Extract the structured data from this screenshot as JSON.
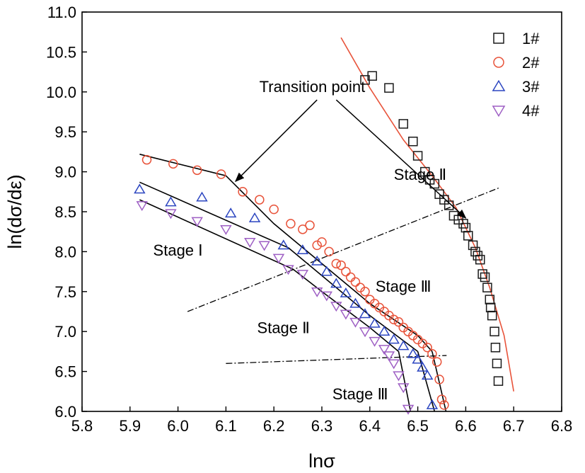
{
  "chart_data": {
    "type": "scatter",
    "title": "",
    "xlabel": "lnσ",
    "ylabel": "ln(dσ/dε)",
    "xlim": [
      5.8,
      6.8
    ],
    "ylim": [
      6.0,
      11.0
    ],
    "xticks": [
      "5.8",
      "5.9",
      "6.0",
      "6.1",
      "6.2",
      "6.3",
      "6.4",
      "6.5",
      "6.6",
      "6.7",
      "6.8"
    ],
    "yticks": [
      "6.0",
      "6.5",
      "7.0",
      "7.5",
      "8.0",
      "8.5",
      "9.0",
      "9.5",
      "10.0",
      "10.5",
      "11.0"
    ],
    "grid": false,
    "legend_position": "top-right",
    "series": [
      {
        "name": "1#",
        "marker": "square",
        "color": "#1a1a1a",
        "x": [
          6.39,
          6.405,
          6.44,
          6.47,
          6.49,
          6.5,
          6.515,
          6.525,
          6.535,
          6.545,
          6.555,
          6.565,
          6.575,
          6.585,
          6.595,
          6.6,
          6.605,
          6.615,
          6.62,
          6.625,
          6.63,
          6.635,
          6.64,
          6.645,
          6.65,
          6.652,
          6.655,
          6.66,
          6.662,
          6.665,
          6.668
        ],
        "y": [
          10.15,
          10.2,
          10.05,
          9.6,
          9.38,
          9.2,
          9.0,
          8.9,
          8.85,
          8.72,
          8.65,
          8.58,
          8.45,
          8.4,
          8.35,
          8.3,
          8.2,
          8.08,
          8.0,
          7.95,
          7.9,
          7.72,
          7.68,
          7.55,
          7.4,
          7.3,
          7.2,
          7.0,
          6.8,
          6.6,
          6.38
        ]
      },
      {
        "name": "2#",
        "marker": "circle",
        "color": "#e8533a",
        "x": [
          5.935,
          5.99,
          6.04,
          6.09,
          6.135,
          6.17,
          6.2,
          6.235,
          6.26,
          6.275,
          6.29,
          6.3,
          6.315,
          6.33,
          6.34,
          6.35,
          6.36,
          6.37,
          6.38,
          6.39,
          6.4,
          6.41,
          6.42,
          6.43,
          6.44,
          6.45,
          6.46,
          6.47,
          6.48,
          6.49,
          6.5,
          6.51,
          6.52,
          6.53,
          6.54,
          6.545,
          6.55,
          6.555
        ],
        "y": [
          9.15,
          9.1,
          9.02,
          8.97,
          8.75,
          8.65,
          8.53,
          8.35,
          8.28,
          8.33,
          8.08,
          8.12,
          8.0,
          7.85,
          7.83,
          7.75,
          7.68,
          7.62,
          7.55,
          7.5,
          7.4,
          7.35,
          7.3,
          7.25,
          7.2,
          7.15,
          7.12,
          7.05,
          7.0,
          6.95,
          6.9,
          6.85,
          6.8,
          6.72,
          6.62,
          6.4,
          6.15,
          6.08
        ]
      },
      {
        "name": "3#",
        "marker": "triangle-up",
        "color": "#2b45c0",
        "x": [
          5.92,
          5.985,
          6.05,
          6.11,
          6.16,
          6.22,
          6.26,
          6.29,
          6.31,
          6.33,
          6.35,
          6.37,
          6.39,
          6.41,
          6.43,
          6.45,
          6.47,
          6.49,
          6.5,
          6.51,
          6.52,
          6.53
        ],
        "y": [
          8.78,
          8.62,
          8.68,
          8.48,
          8.42,
          8.08,
          8.02,
          7.88,
          7.75,
          7.6,
          7.48,
          7.35,
          7.22,
          7.1,
          7.0,
          6.9,
          6.82,
          6.72,
          6.65,
          6.55,
          6.45,
          6.08
        ]
      },
      {
        "name": "4#",
        "marker": "triangle-down",
        "color": "#9e5fc4",
        "x": [
          5.925,
          5.985,
          6.04,
          6.1,
          6.15,
          6.18,
          6.21,
          6.23,
          6.26,
          6.29,
          6.31,
          6.33,
          6.35,
          6.37,
          6.39,
          6.41,
          6.43,
          6.44,
          6.45,
          6.46,
          6.47,
          6.48
        ],
        "y": [
          8.58,
          8.48,
          8.38,
          8.28,
          8.12,
          8.08,
          7.92,
          7.78,
          7.72,
          7.5,
          7.45,
          7.32,
          7.22,
          7.12,
          7.0,
          6.88,
          6.78,
          6.7,
          6.6,
          6.45,
          6.3,
          6.03
        ]
      }
    ],
    "fit_lines": [
      {
        "color": "#e8533a",
        "x": [
          6.34,
          6.4,
          6.47,
          6.53,
          6.58,
          6.62,
          6.65,
          6.68,
          6.7
        ],
        "y": [
          10.68,
          10.05,
          9.4,
          8.95,
          8.55,
          8.05,
          7.55,
          6.95,
          6.25
        ]
      },
      {
        "color": "#000000",
        "x": [
          5.92,
          6.1
        ],
        "y": [
          9.22,
          8.95
        ]
      },
      {
        "color": "#000000",
        "x": [
          6.1,
          6.2,
          6.3,
          6.4,
          6.5,
          6.53
        ],
        "y": [
          8.95,
          8.35,
          7.85,
          7.35,
          6.95,
          6.75
        ]
      },
      {
        "color": "#000000",
        "x": [
          6.53,
          6.56
        ],
        "y": [
          6.75,
          5.97
        ]
      },
      {
        "color": "#000000",
        "x": [
          5.92,
          6.23
        ],
        "y": [
          8.87,
          8.05
        ]
      },
      {
        "color": "#000000",
        "x": [
          6.23,
          6.3,
          6.4,
          6.5
        ],
        "y": [
          8.05,
          7.7,
          7.2,
          6.75
        ]
      },
      {
        "color": "#000000",
        "x": [
          6.5,
          6.535
        ],
        "y": [
          6.75,
          6.0
        ]
      },
      {
        "color": "#000000",
        "x": [
          5.92,
          6.24
        ],
        "y": [
          8.65,
          7.78
        ]
      },
      {
        "color": "#000000",
        "x": [
          6.24,
          6.3,
          6.4,
          6.46
        ],
        "y": [
          7.78,
          7.5,
          7.05,
          6.75
        ]
      },
      {
        "color": "#000000",
        "x": [
          6.46,
          6.485
        ],
        "y": [
          6.75,
          6.0
        ]
      }
    ],
    "dashdot_lines": [
      {
        "x": [
          6.02,
          6.67
        ],
        "y": [
          7.25,
          8.8
        ]
      },
      {
        "x": [
          6.1,
          6.56
        ],
        "y": [
          6.6,
          6.7
        ]
      }
    ],
    "annotations": [
      {
        "text": "Transition point",
        "x": 6.28,
        "y": 10.0
      },
      {
        "text": "Stage Ⅱ",
        "x": 6.505,
        "y": 8.9
      },
      {
        "text": "Stage Ⅰ",
        "x": 6.0,
        "y": 7.95
      },
      {
        "text": "Stage Ⅲ",
        "x": 6.47,
        "y": 7.5
      },
      {
        "text": "Stage Ⅱ",
        "x": 6.22,
        "y": 6.98
      },
      {
        "text": "Stage Ⅲ",
        "x": 6.38,
        "y": 6.15
      }
    ],
    "arrows": [
      {
        "from": [
          6.29,
          9.9
        ],
        "to": [
          6.12,
          8.88
        ]
      },
      {
        "from": [
          6.33,
          9.9
        ],
        "to": [
          6.6,
          8.42
        ]
      }
    ]
  }
}
